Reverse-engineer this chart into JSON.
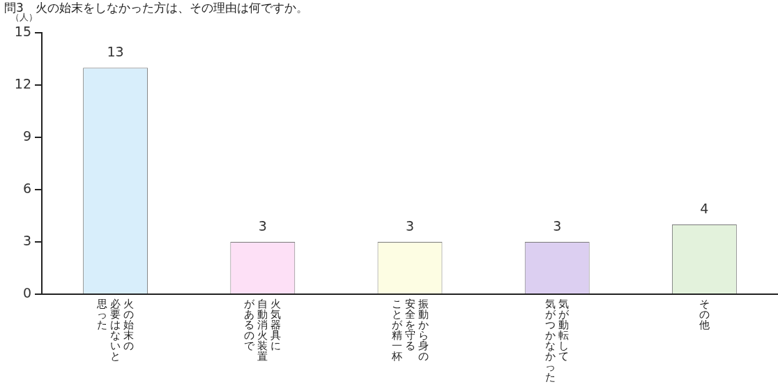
{
  "chart_data": {
    "type": "bar",
    "title": "問3　火の始末をしなかった方は、その理由は何ですか。",
    "ylabel": "（人）",
    "categories": [
      "火の始末の必要はないと思った",
      "火気器具に自動消火装置があるので",
      "振動から身の安全を守ることが精一杯",
      "気が動転して気がつかなかった",
      "その他"
    ],
    "values": [
      13,
      3,
      3,
      3,
      4
    ],
    "colors": [
      "#d8eefb",
      "#fde0f6",
      "#fdfde3",
      "#dccff1",
      "#e3f2dc"
    ],
    "ylim": [
      0,
      15
    ],
    "yticks": [
      0,
      3,
      6,
      9,
      12,
      15
    ],
    "data_labels": true
  }
}
